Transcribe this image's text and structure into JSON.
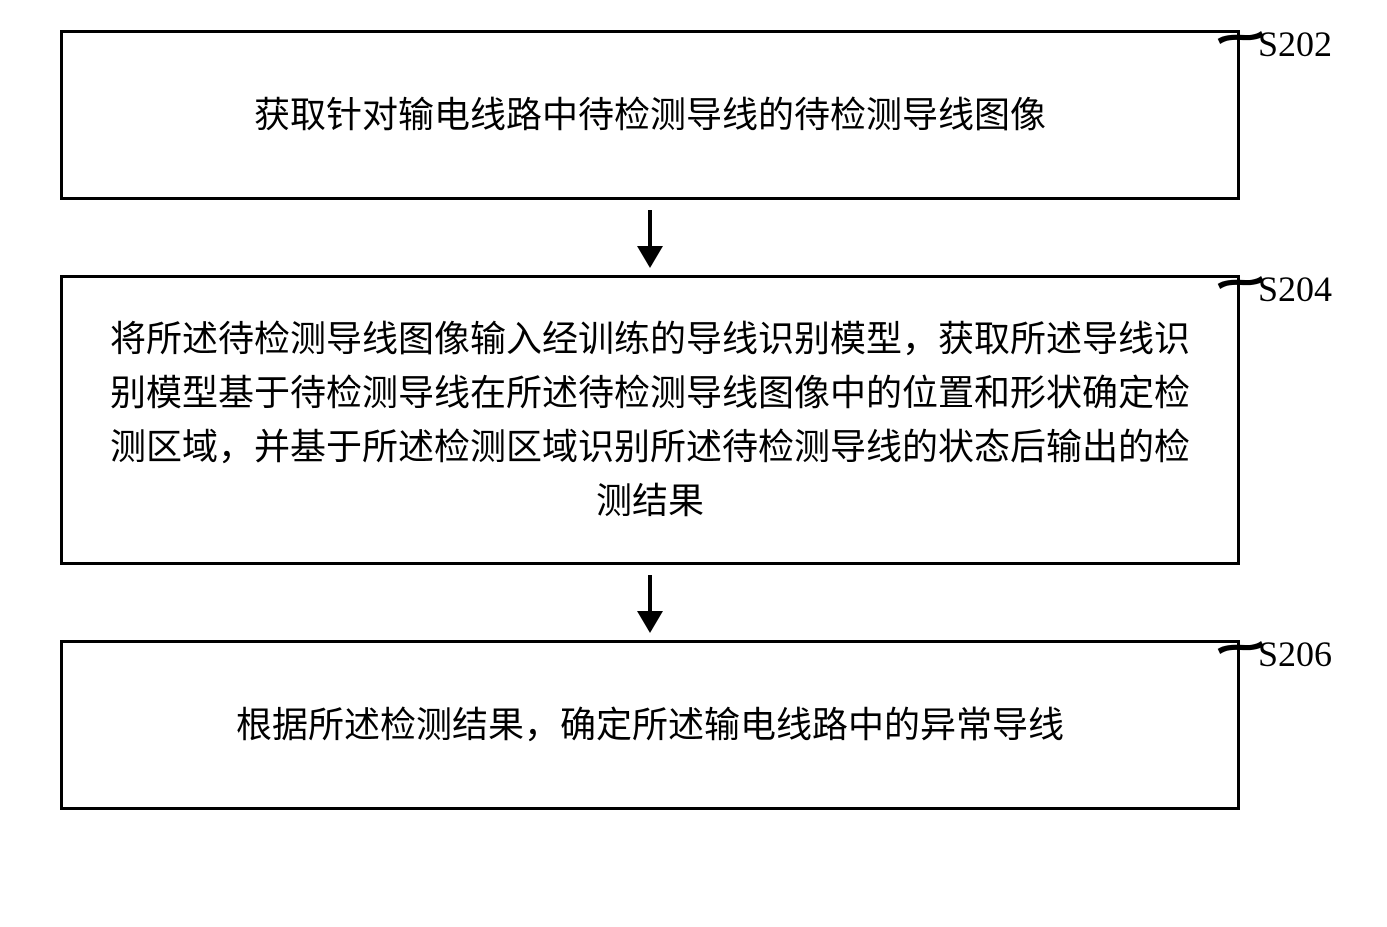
{
  "flowchart": {
    "type": "flowchart",
    "background_color": "#ffffff",
    "border_color": "#000000",
    "border_width": 3,
    "text_color": "#000000",
    "font_size": 36,
    "font_family": "SimSun",
    "arrow_color": "#000000",
    "steps": [
      {
        "id": "S202",
        "label": "S202",
        "text": "获取针对输电线路中待检测导线的待检测导线图像"
      },
      {
        "id": "S204",
        "label": "S204",
        "text": "将所述待检测导线图像输入经训练的导线识别模型，获取所述导线识别模型基于待检测导线在所述待检测导线图像中的位置和形状确定检测区域，并基于所述检测区域识别所述待检测导线的状态后输出的检测结果"
      },
      {
        "id": "S206",
        "label": "S206",
        "text": "根据所述检测结果，确定所述输电线路中的异常导线"
      }
    ],
    "edges": [
      {
        "from": "S202",
        "to": "S204"
      },
      {
        "from": "S204",
        "to": "S206"
      }
    ]
  }
}
